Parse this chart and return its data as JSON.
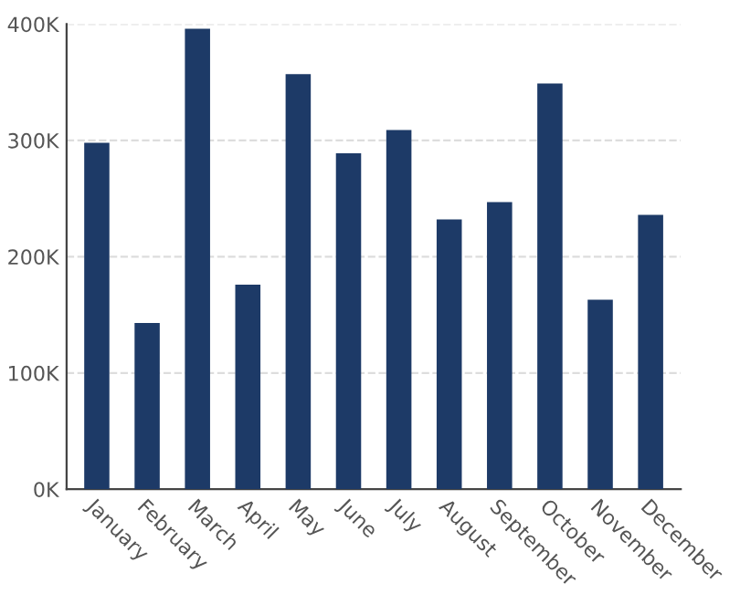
{
  "chart_data": {
    "type": "bar",
    "categories": [
      "January",
      "February",
      "March",
      "April",
      "May",
      "June",
      "July",
      "August",
      "September",
      "October",
      "November",
      "December"
    ],
    "values": [
      298000,
      143000,
      396000,
      176000,
      357000,
      289000,
      309000,
      232000,
      247000,
      349000,
      163000,
      236000
    ],
    "color": "#1d3a67",
    "ylim": [
      0,
      400000
    ],
    "yticks": [
      {
        "value": 0,
        "label": "0K"
      },
      {
        "value": 100000,
        "label": "100K"
      },
      {
        "value": 200000,
        "label": "200K"
      },
      {
        "value": 300000,
        "label": "300K"
      },
      {
        "value": 400000,
        "label": "400K"
      }
    ],
    "grid": "y"
  }
}
